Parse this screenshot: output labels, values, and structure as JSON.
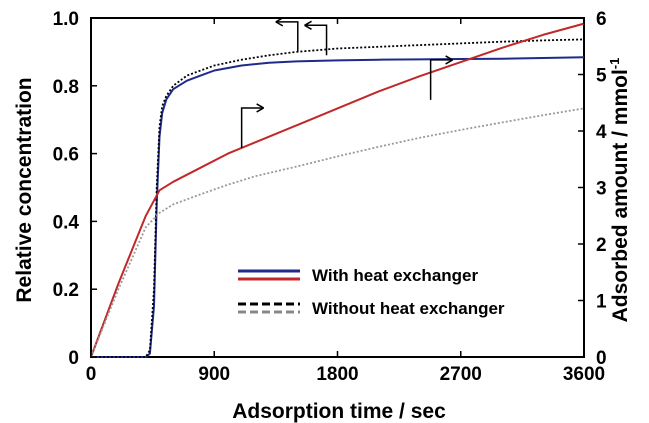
{
  "chart_data": {
    "type": "line",
    "xlabel": "Adsorption time / sec",
    "ylabel_left": "Relative concentration",
    "ylabel_right_main": "Adsorbed amount / mmol",
    "ylabel_right_sup": "-1",
    "xlim": [
      0,
      3600
    ],
    "ylim_left": [
      0,
      1.0
    ],
    "ylim_right": [
      0,
      6
    ],
    "xticks": [
      "0",
      "900",
      "1800",
      "2700",
      "3600"
    ],
    "yticks_left": [
      "0",
      "0.2",
      "0.4",
      "0.6",
      "0.8",
      "1.0"
    ],
    "yticks_right": [
      "0",
      "1",
      "2",
      "3",
      "4",
      "5",
      "6"
    ],
    "grid": false,
    "legend": {
      "placement": "bottom-right",
      "entries": [
        {
          "label": "With heat exchanger",
          "colors": [
            "#1f2a8a",
            "#c0282a"
          ],
          "style": "solid"
        },
        {
          "label": "Without heat exchanger",
          "colors": [
            "#000000",
            "#888888"
          ],
          "style": "dashed"
        }
      ]
    },
    "series": [
      {
        "axis": "left",
        "color": "#1f2a8a",
        "style": "solid",
        "legend": "With heat exchanger",
        "x": [
          0,
          400,
          430,
          460,
          480,
          500,
          520,
          550,
          600,
          700,
          800,
          900,
          1100,
          1300,
          1500,
          1800,
          2100,
          2400,
          2700,
          3000,
          3300,
          3600
        ],
        "y": [
          0,
          0,
          0.01,
          0.15,
          0.45,
          0.65,
          0.72,
          0.76,
          0.79,
          0.815,
          0.83,
          0.845,
          0.86,
          0.868,
          0.872,
          0.875,
          0.877,
          0.878,
          0.879,
          0.88,
          0.882,
          0.884
        ]
      },
      {
        "axis": "left",
        "color": "#000000",
        "style": "dotted",
        "legend": "Without heat exchanger",
        "x": [
          0,
          400,
          430,
          460,
          480,
          500,
          520,
          550,
          600,
          700,
          800,
          900,
          1100,
          1300,
          1500,
          1800,
          2100,
          2400,
          2700,
          3000,
          3300,
          3600
        ],
        "y": [
          0,
          0,
          0.02,
          0.2,
          0.5,
          0.68,
          0.74,
          0.77,
          0.8,
          0.83,
          0.845,
          0.86,
          0.877,
          0.89,
          0.9,
          0.91,
          0.915,
          0.92,
          0.925,
          0.93,
          0.934,
          0.937
        ]
      },
      {
        "axis": "right",
        "color": "#c0282a",
        "style": "solid",
        "legend": "With heat exchanger",
        "x": [
          0,
          200,
          400,
          500,
          600,
          800,
          1000,
          1200,
          1500,
          1800,
          2100,
          2400,
          2700,
          3000,
          3300,
          3600
        ],
        "y": [
          0,
          1.3,
          2.5,
          2.95,
          3.1,
          3.35,
          3.6,
          3.8,
          4.1,
          4.4,
          4.7,
          4.97,
          5.22,
          5.47,
          5.7,
          5.9
        ]
      },
      {
        "axis": "right",
        "color": "#999999",
        "style": "dotted",
        "legend": "Without heat exchanger",
        "x": [
          0,
          200,
          400,
          500,
          600,
          800,
          1000,
          1200,
          1500,
          1800,
          2100,
          2400,
          2700,
          3000,
          3300,
          3600
        ],
        "y": [
          0,
          1.2,
          2.3,
          2.55,
          2.7,
          2.88,
          3.05,
          3.2,
          3.37,
          3.55,
          3.72,
          3.88,
          4.02,
          4.15,
          4.28,
          4.4
        ]
      }
    ],
    "annotations": [
      {
        "type": "arrow",
        "direction": "left",
        "x": 1510,
        "y_left": 0.9,
        "points_to": "left"
      },
      {
        "type": "arrow",
        "direction": "left",
        "x": 1720,
        "y_left": 0.89,
        "points_to": "left"
      },
      {
        "type": "arrow",
        "direction": "right",
        "x": 1100,
        "y_right": 3.7,
        "points_to": "right"
      },
      {
        "type": "arrow",
        "direction": "right",
        "x": 2480,
        "y_right": 4.55,
        "points_to": "right"
      }
    ]
  }
}
